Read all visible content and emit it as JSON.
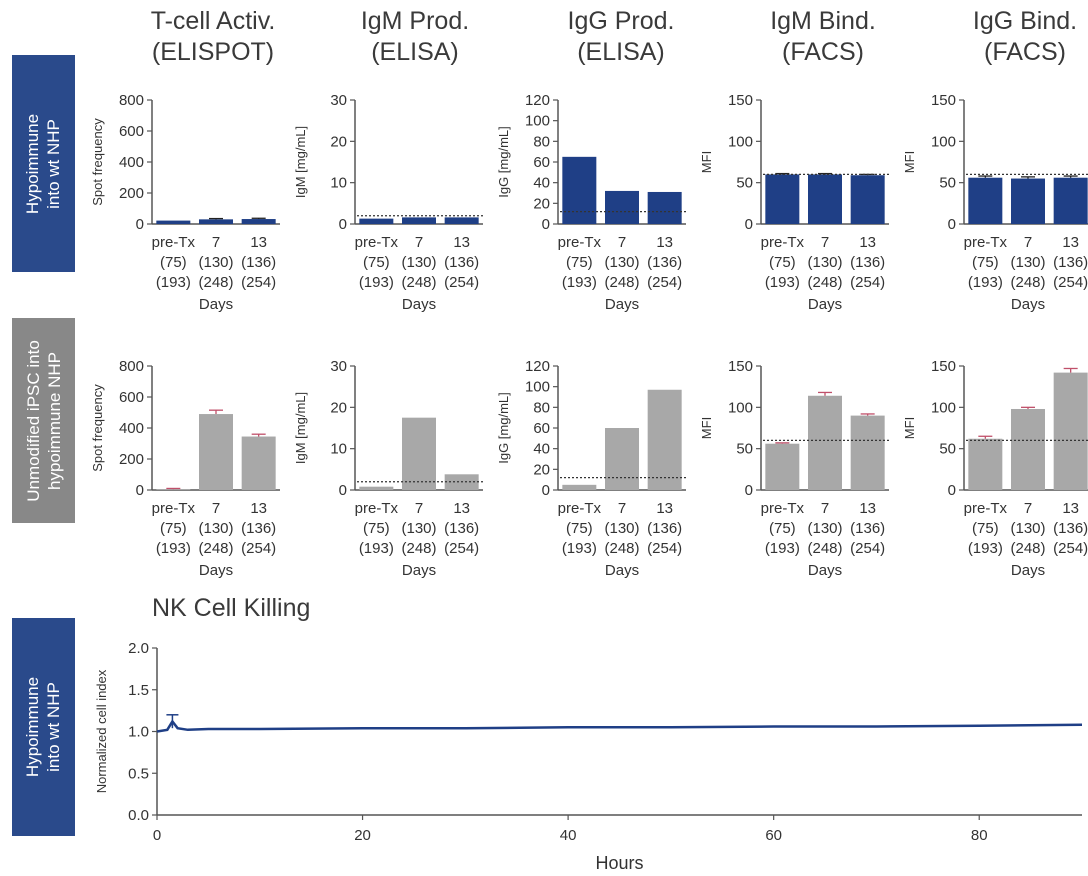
{
  "columns": [
    {
      "title": "T-cell Activ.\n(ELISPOT)"
    },
    {
      "title": "IgM Prod.\n(ELISA)"
    },
    {
      "title": "IgG Prod.\n(ELISA)"
    },
    {
      "title": "IgM Bind.\n(FACS)"
    },
    {
      "title": "IgG Bind.\n(FACS)"
    }
  ],
  "rows": [
    {
      "label": "Hypoimmune\ninto wt NHP",
      "color": "#2a4a8b"
    },
    {
      "label": "Unmodified iPSC into\nhypoimmune NHP",
      "color": "#888888"
    },
    {
      "label": "Hypoimmune\ninto wt NHP",
      "color": "#2a4a8b"
    }
  ],
  "colors": {
    "blue_bar": "#1f3f86",
    "gray_bar": "#a8a8a8",
    "error_bar": "#c0506a",
    "axis": "#555555"
  },
  "chart_data": [
    {
      "type": "bar",
      "row": 0,
      "col": 0,
      "ylabel": "Spot frequency",
      "ylim": [
        0,
        800
      ],
      "yticks": [
        0,
        200,
        400,
        600,
        800
      ],
      "categories": [
        [
          "pre-Tx",
          "(75)",
          "(193)"
        ],
        [
          "7",
          "(130)",
          "(248)"
        ],
        [
          "13",
          "(136)",
          "(254)"
        ]
      ],
      "xlabel": "Days",
      "values": [
        22,
        30,
        32
      ],
      "errors": [
        0,
        5,
        5
      ],
      "dotted": null
    },
    {
      "type": "bar",
      "row": 0,
      "col": 1,
      "ylabel": "IgM [mg/mL]",
      "ylim": [
        0,
        30
      ],
      "yticks": [
        0,
        10,
        20,
        30
      ],
      "categories": [
        [
          "pre-Tx",
          "(75)",
          "(193)"
        ],
        [
          "7",
          "(130)",
          "(248)"
        ],
        [
          "13",
          "(136)",
          "(254)"
        ]
      ],
      "xlabel": "Days",
      "values": [
        1.3,
        1.6,
        1.6
      ],
      "errors": [
        0,
        0,
        0
      ],
      "dotted": 2
    },
    {
      "type": "bar",
      "row": 0,
      "col": 2,
      "ylabel": "IgG [mg/mL]",
      "ylim": [
        0,
        120
      ],
      "yticks": [
        0,
        20,
        40,
        60,
        80,
        100,
        120
      ],
      "categories": [
        [
          "pre-Tx",
          "(75)",
          "(193)"
        ],
        [
          "7",
          "(130)",
          "(248)"
        ],
        [
          "13",
          "(136)",
          "(254)"
        ]
      ],
      "xlabel": "Days",
      "values": [
        65,
        32,
        31
      ],
      "errors": [
        0,
        0,
        0
      ],
      "dotted": 12
    },
    {
      "type": "bar",
      "row": 0,
      "col": 3,
      "ylabel": "MFI",
      "ylim": [
        0,
        150
      ],
      "yticks": [
        0,
        50,
        100,
        150
      ],
      "categories": [
        [
          "pre-Tx",
          "(75)",
          "(193)"
        ],
        [
          "7",
          "(130)",
          "(248)"
        ],
        [
          "13",
          "(136)",
          "(254)"
        ]
      ],
      "xlabel": "Days",
      "values": [
        60,
        60,
        59
      ],
      "errors": [
        1,
        1,
        1
      ],
      "dotted": 60
    },
    {
      "type": "bar",
      "row": 0,
      "col": 4,
      "ylabel": "MFI",
      "ylim": [
        0,
        150
      ],
      "yticks": [
        0,
        50,
        100,
        150
      ],
      "categories": [
        [
          "pre-Tx",
          "(75)",
          "(193)"
        ],
        [
          "7",
          "(130)",
          "(248)"
        ],
        [
          "13",
          "(136)",
          "(254)"
        ]
      ],
      "xlabel": "Days",
      "values": [
        56,
        55,
        56
      ],
      "errors": [
        2,
        2,
        2
      ],
      "dotted": 60
    },
    {
      "type": "bar",
      "row": 1,
      "col": 0,
      "ylabel": "Spot frequency",
      "ylim": [
        0,
        800
      ],
      "yticks": [
        0,
        200,
        400,
        600,
        800
      ],
      "categories": [
        [
          "pre-Tx",
          "(75)",
          "(193)"
        ],
        [
          "7",
          "(130)",
          "(248)"
        ],
        [
          "13",
          "(136)",
          "(254)"
        ]
      ],
      "xlabel": "Days",
      "values": [
        5,
        490,
        345
      ],
      "errors": [
        5,
        25,
        15
      ],
      "dotted": null
    },
    {
      "type": "bar",
      "row": 1,
      "col": 1,
      "ylabel": "IgM [mg/mL]",
      "ylim": [
        0,
        30
      ],
      "yticks": [
        0,
        10,
        20,
        30
      ],
      "categories": [
        [
          "pre-Tx",
          "(75)",
          "(193)"
        ],
        [
          "7",
          "(130)",
          "(248)"
        ],
        [
          "13",
          "(136)",
          "(254)"
        ]
      ],
      "xlabel": "Days",
      "values": [
        0.8,
        17.5,
        3.8
      ],
      "errors": [
        0,
        0,
        0
      ],
      "dotted": 2
    },
    {
      "type": "bar",
      "row": 1,
      "col": 2,
      "ylabel": "IgG [mg/mL]",
      "ylim": [
        0,
        120
      ],
      "yticks": [
        0,
        20,
        40,
        60,
        80,
        100,
        120
      ],
      "categories": [
        [
          "pre-Tx",
          "(75)",
          "(193)"
        ],
        [
          "7",
          "(130)",
          "(248)"
        ],
        [
          "13",
          "(136)",
          "(254)"
        ]
      ],
      "xlabel": "Days",
      "values": [
        5,
        60,
        97
      ],
      "errors": [
        0,
        0,
        0
      ],
      "dotted": 12
    },
    {
      "type": "bar",
      "row": 1,
      "col": 3,
      "ylabel": "MFI",
      "ylim": [
        0,
        150
      ],
      "yticks": [
        0,
        50,
        100,
        150
      ],
      "categories": [
        [
          "pre-Tx",
          "(75)",
          "(193)"
        ],
        [
          "7",
          "(130)",
          "(248)"
        ],
        [
          "13",
          "(136)",
          "(254)"
        ]
      ],
      "xlabel": "Days",
      "values": [
        56,
        114,
        90
      ],
      "errors": [
        1,
        4,
        2
      ],
      "dotted": 60
    },
    {
      "type": "bar",
      "row": 1,
      "col": 4,
      "ylabel": "MFI",
      "ylim": [
        0,
        150
      ],
      "yticks": [
        0,
        50,
        100,
        150
      ],
      "categories": [
        [
          "pre-Tx",
          "(75)",
          "(193)"
        ],
        [
          "7",
          "(130)",
          "(248)"
        ],
        [
          "13",
          "(136)",
          "(254)"
        ]
      ],
      "xlabel": "Days",
      "values": [
        62,
        98,
        142
      ],
      "errors": [
        3,
        2,
        5
      ],
      "dotted": 60
    },
    {
      "type": "line",
      "title": "NK Cell Killing",
      "ylabel": "Normalized cell index",
      "xlabel": "Hours",
      "ylim": [
        0,
        2.0
      ],
      "yticks": [
        "0.0",
        "0.5",
        "1.0",
        "1.5",
        "2.0"
      ],
      "xlim": [
        0,
        90
      ],
      "xticks": [
        0,
        20,
        40,
        60,
        80
      ],
      "x": [
        0,
        1,
        1.5,
        2,
        3,
        5,
        10,
        20,
        30,
        40,
        50,
        60,
        70,
        80,
        90
      ],
      "y": [
        1.0,
        1.02,
        1.12,
        1.04,
        1.02,
        1.03,
        1.03,
        1.04,
        1.04,
        1.05,
        1.05,
        1.06,
        1.06,
        1.07,
        1.08
      ],
      "error": {
        "x": 1.5,
        "low": 1.04,
        "high": 1.2
      }
    }
  ]
}
